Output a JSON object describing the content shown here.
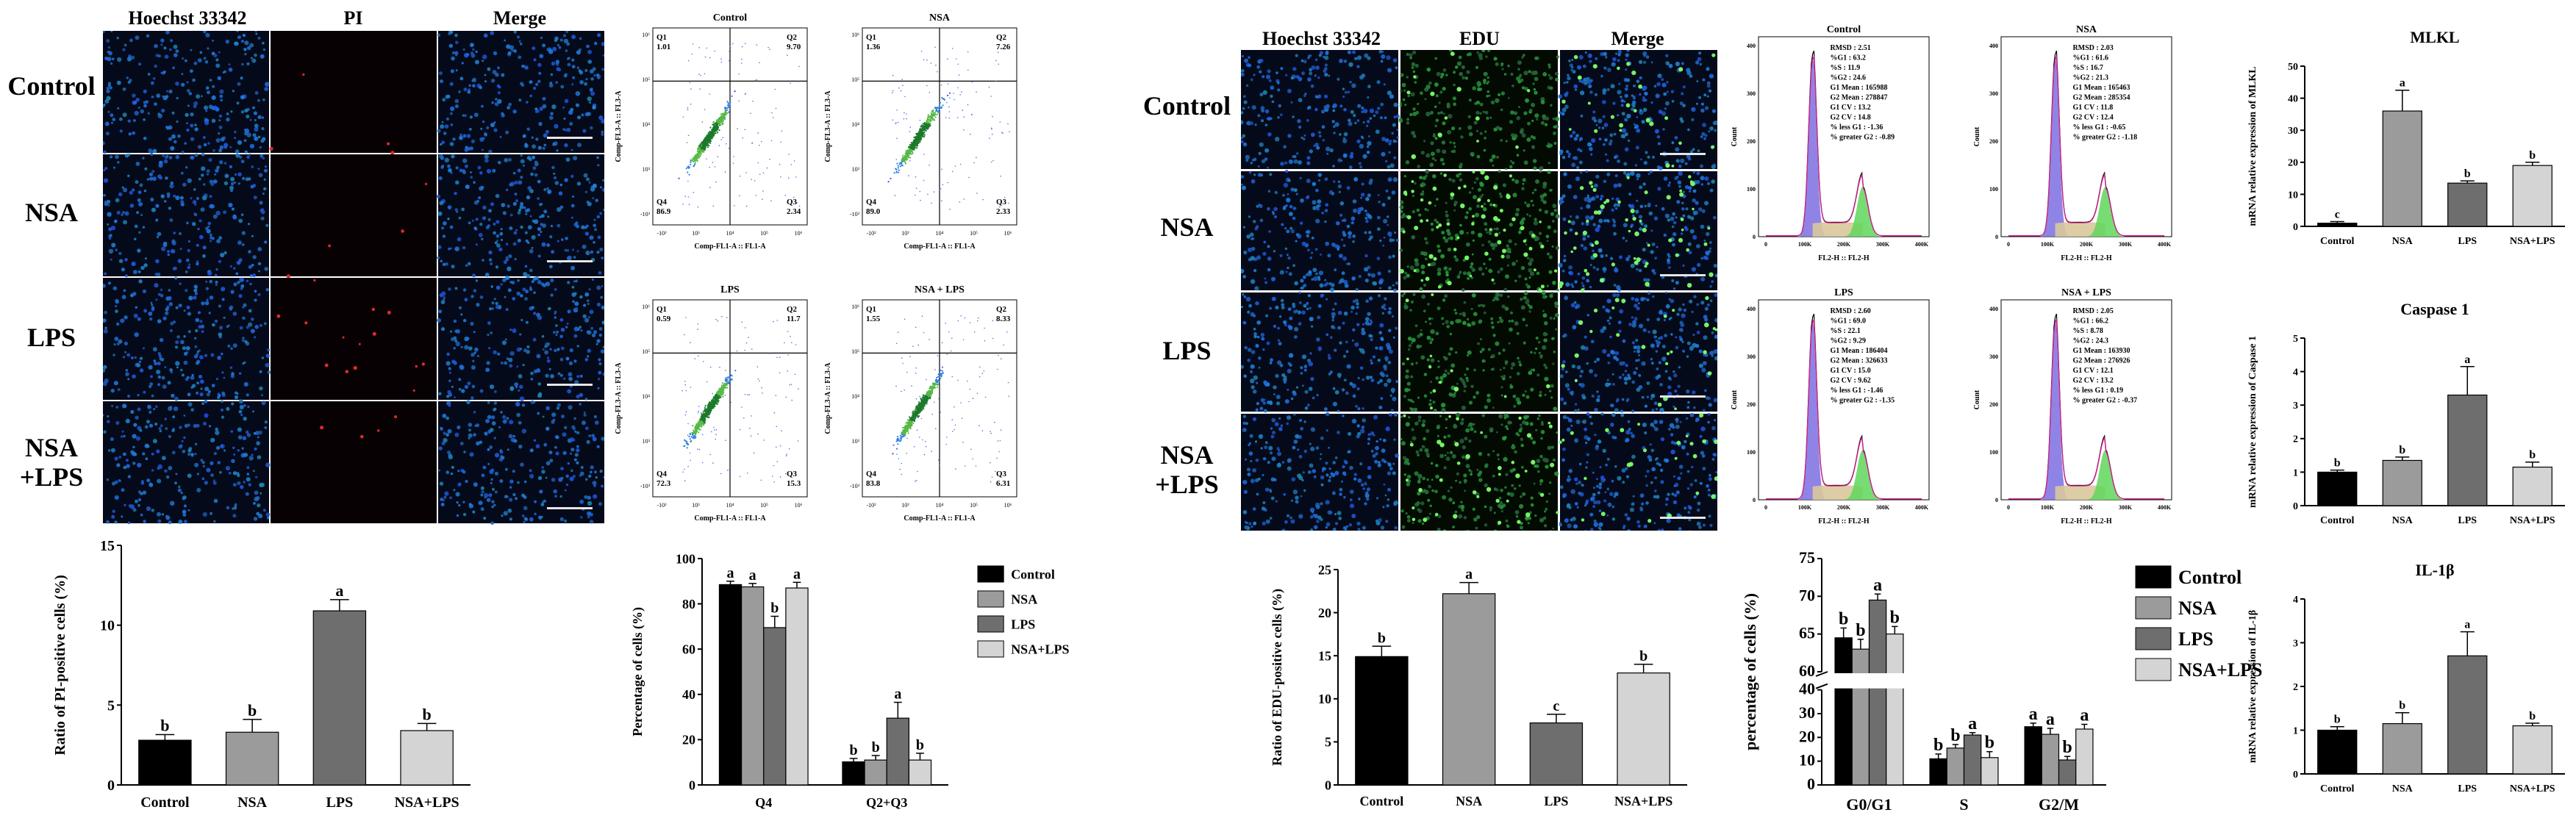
{
  "pi_panel": {
    "col_labels": [
      "Hoechst 33342",
      "PI",
      "Merge"
    ],
    "row_labels": [
      "Control",
      "NSA",
      "LPS",
      "NSA\n+LPS"
    ]
  },
  "edu_panel": {
    "col_labels": [
      "Hoechst 33342",
      "EDU",
      "Merge"
    ],
    "row_labels": [
      "Control",
      "NSA",
      "LPS",
      "NSA\n+LPS"
    ]
  },
  "flow_plots": [
    {
      "title": "Control",
      "q1": "1.01",
      "q2": "9.70",
      "q3": "2.34",
      "q4": "86.9"
    },
    {
      "title": "NSA",
      "q1": "1.36",
      "q2": "7.26",
      "q3": "2.33",
      "q4": "89.0"
    },
    {
      "title": "LPS",
      "q1": "0.59",
      "q2": "11.7",
      "q3": "15.3",
      "q4": "72.3"
    },
    {
      "title": "NSA + LPS",
      "q1": "1.55",
      "q2": "8.33",
      "q3": "6.31",
      "q4": "83.8"
    }
  ],
  "flow_axes": {
    "ylabel": "Comp-FL3-A :: FL3-A",
    "xlabel": "Comp-FL1-A :: FL1-A",
    "q_names": [
      "Q1",
      "Q2",
      "Q3",
      "Q4"
    ],
    "ticks": [
      "-10³",
      "10³",
      "10⁴",
      "10⁵",
      "10⁶"
    ]
  },
  "cell_cycle_plots": [
    {
      "title": "Control",
      "stats": [
        "RMSD : 2.51",
        "%G1 : 63.2",
        "%S : 11.9",
        "%G2 : 24.6",
        "G1 Mean : 165988",
        "G2 Mean : 278847",
        "G1 CV : 13.2",
        "G2 CV : 14.8",
        "% less G1 : -1.36",
        "% greater G2 : -0.89"
      ]
    },
    {
      "title": "NSA",
      "stats": [
        "RMSD : 2.03",
        "%G1 : 61.6",
        "%S : 16.7",
        "%G2 : 21.3",
        "G1 Mean : 165463",
        "G2 Mean : 285354",
        "G1 CV : 11.8",
        "G2 CV : 12.4",
        "% less G1 : -0.65",
        "% greater G2 : -1.18"
      ]
    },
    {
      "title": "LPS",
      "stats": [
        "RMSD : 2.60",
        "%G1 : 69.0",
        "%S : 22.1",
        "%G2 : 9.29",
        "G1 Mean : 186404",
        "G2 Mean : 326633",
        "G1 CV : 15.0",
        "G2 CV : 9.62",
        "% less G1 : -1.46",
        "% greater G2 : -1.35"
      ]
    },
    {
      "title": "NSA + LPS",
      "stats": [
        "RMSD : 2.05",
        "%G1 : 66.2",
        "%S : 8.78",
        "%G2 : 24.3",
        "G1 Mean : 163930",
        "G2 Mean : 276926",
        "G1 CV : 12.1",
        "G2 CV : 13.2",
        "% less G1 : 0.19",
        "% greater G2 : -0.37"
      ]
    }
  ],
  "cc_axes": {
    "xlabel": "FL2-H :: FL2-H",
    "ylabel": "Count",
    "xticks": [
      "0",
      "100K",
      "200K",
      "300K",
      "400K"
    ],
    "yticks": [
      "0",
      "100",
      "200",
      "300",
      "400"
    ]
  },
  "chart_data": [
    {
      "id": "pi_ratio",
      "type": "bar",
      "categories": [
        "Control",
        "NSA",
        "LPS",
        "NSA+LPS"
      ],
      "values": [
        2.8,
        3.3,
        10.9,
        3.4
      ],
      "errors": [
        0.35,
        0.8,
        0.7,
        0.45
      ],
      "letters": [
        "b",
        "b",
        "a",
        "b"
      ],
      "colors": [
        "#000000",
        "#9b9b9b",
        "#6e6e6e",
        "#d4d4d4"
      ],
      "ylabel": "Ratio of PI-positive cells (%)",
      "yticks": [
        0,
        5,
        10,
        15
      ],
      "ylim": [
        0,
        15
      ]
    },
    {
      "id": "percentage_cells",
      "type": "bar",
      "categories": [
        "Q4",
        "Q2+Q3"
      ],
      "series": [
        {
          "name": "Control",
          "values": [
            88.5,
            10.2
          ],
          "errors": [
            1.5,
            1.5
          ],
          "letters": [
            "a",
            "b"
          ],
          "color": "#000000"
        },
        {
          "name": "NSA",
          "values": [
            87.5,
            11.0
          ],
          "errors": [
            1.5,
            2.0
          ],
          "letters": [
            "a",
            "b"
          ],
          "color": "#9b9b9b"
        },
        {
          "name": "LPS",
          "values": [
            69.5,
            29.5
          ],
          "errors": [
            5.0,
            7.0
          ],
          "letters": [
            "b",
            "a"
          ],
          "color": "#6e6e6e"
        },
        {
          "name": "NSA+LPS",
          "values": [
            87.0,
            11.0
          ],
          "errors": [
            2.5,
            3.0
          ],
          "letters": [
            "a",
            "b"
          ],
          "color": "#d4d4d4"
        }
      ],
      "ylabel": "Percentage of cells  (%)",
      "yticks": [
        0,
        20,
        40,
        60,
        80,
        100
      ],
      "ylim": [
        0,
        100
      ],
      "legend": "top-right"
    },
    {
      "id": "edu_ratio",
      "type": "bar",
      "categories": [
        "Control",
        "NSA",
        "LPS",
        "NSA+LPS"
      ],
      "values": [
        14.9,
        22.2,
        7.2,
        13.0
      ],
      "errors": [
        1.2,
        1.3,
        1.0,
        1.0
      ],
      "letters": [
        "b",
        "a",
        "c",
        "b"
      ],
      "colors": [
        "#000000",
        "#9b9b9b",
        "#6e6e6e",
        "#d4d4d4"
      ],
      "ylabel": "Ratio of EDU-positive cells (%)",
      "yticks": [
        0,
        5,
        10,
        15,
        20,
        25
      ],
      "ylim": [
        0,
        25
      ]
    },
    {
      "id": "cell_cycle_percentage",
      "type": "bar",
      "categories": [
        "G0/G1",
        "S",
        "G2/M"
      ],
      "series": [
        {
          "name": "Control",
          "values": [
            64.5,
            11.0,
            24.5
          ],
          "errors": [
            1.3,
            2.0,
            1.5
          ],
          "letters": [
            "b",
            "b",
            "a"
          ],
          "color": "#000000"
        },
        {
          "name": "NSA",
          "values": [
            63.0,
            15.5,
            21.3
          ],
          "errors": [
            1.3,
            1.5,
            2.5
          ],
          "letters": [
            "b",
            "b",
            "a"
          ],
          "color": "#9b9b9b"
        },
        {
          "name": "LPS",
          "values": [
            69.5,
            21.0,
            10.5
          ],
          "errors": [
            0.8,
            1.0,
            1.5
          ],
          "letters": [
            "a",
            "a",
            "b"
          ],
          "color": "#6e6e6e"
        },
        {
          "name": "NSA+LPS",
          "values": [
            65.0,
            11.5,
            23.5
          ],
          "errors": [
            1.0,
            2.5,
            2.0
          ],
          "letters": [
            "b",
            "b",
            "a"
          ],
          "color": "#d4d4d4"
        }
      ],
      "ylabel": "percentage of cells (%)",
      "yticks_lower": [
        0,
        10,
        20,
        30,
        40
      ],
      "yticks_upper": [
        60,
        65,
        70,
        75
      ],
      "broken_axis": true,
      "legend": "right"
    },
    {
      "id": "mlkl",
      "type": "bar",
      "title": "MLKL",
      "categories": [
        "Control",
        "NSA",
        "LPS",
        "NSA+LPS"
      ],
      "values": [
        1.0,
        36.0,
        13.5,
        19.0
      ],
      "errors": [
        0.5,
        6.5,
        0.7,
        1.0
      ],
      "letters": [
        "c",
        "a",
        "b",
        "b"
      ],
      "colors": [
        "#000000",
        "#9b9b9b",
        "#6e6e6e",
        "#d4d4d4"
      ],
      "ylabel": "mRNA relative expression of MLKL",
      "yticks": [
        0,
        10,
        20,
        30,
        40,
        50
      ],
      "ylim": [
        0,
        50
      ]
    },
    {
      "id": "caspase1",
      "type": "bar",
      "title": "Caspase 1",
      "categories": [
        "Control",
        "NSA",
        "LPS",
        "NSA+LPS"
      ],
      "values": [
        1.0,
        1.35,
        3.3,
        1.15
      ],
      "errors": [
        0.06,
        0.1,
        0.85,
        0.15
      ],
      "letters": [
        "b",
        "b",
        "a",
        "b"
      ],
      "colors": [
        "#000000",
        "#9b9b9b",
        "#6e6e6e",
        "#d4d4d4"
      ],
      "ylabel": "mRNA relative expression of Caspase 1",
      "yticks": [
        0,
        1,
        2,
        3,
        4,
        5
      ],
      "ylim": [
        0,
        5
      ]
    },
    {
      "id": "il1b",
      "type": "bar",
      "title": "IL-1β",
      "categories": [
        "Control",
        "NSA",
        "LPS",
        "NSA+LPS"
      ],
      "values": [
        1.0,
        1.15,
        2.7,
        1.1
      ],
      "errors": [
        0.08,
        0.25,
        0.55,
        0.06
      ],
      "letters": [
        "b",
        "b",
        "a",
        "b"
      ],
      "colors": [
        "#000000",
        "#9b9b9b",
        "#6e6e6e",
        "#d4d4d4"
      ],
      "ylabel": "mRNA relative expression of IL-1β",
      "yticks": [
        0,
        1,
        2,
        3,
        4
      ],
      "ylim": [
        0,
        4
      ]
    }
  ]
}
